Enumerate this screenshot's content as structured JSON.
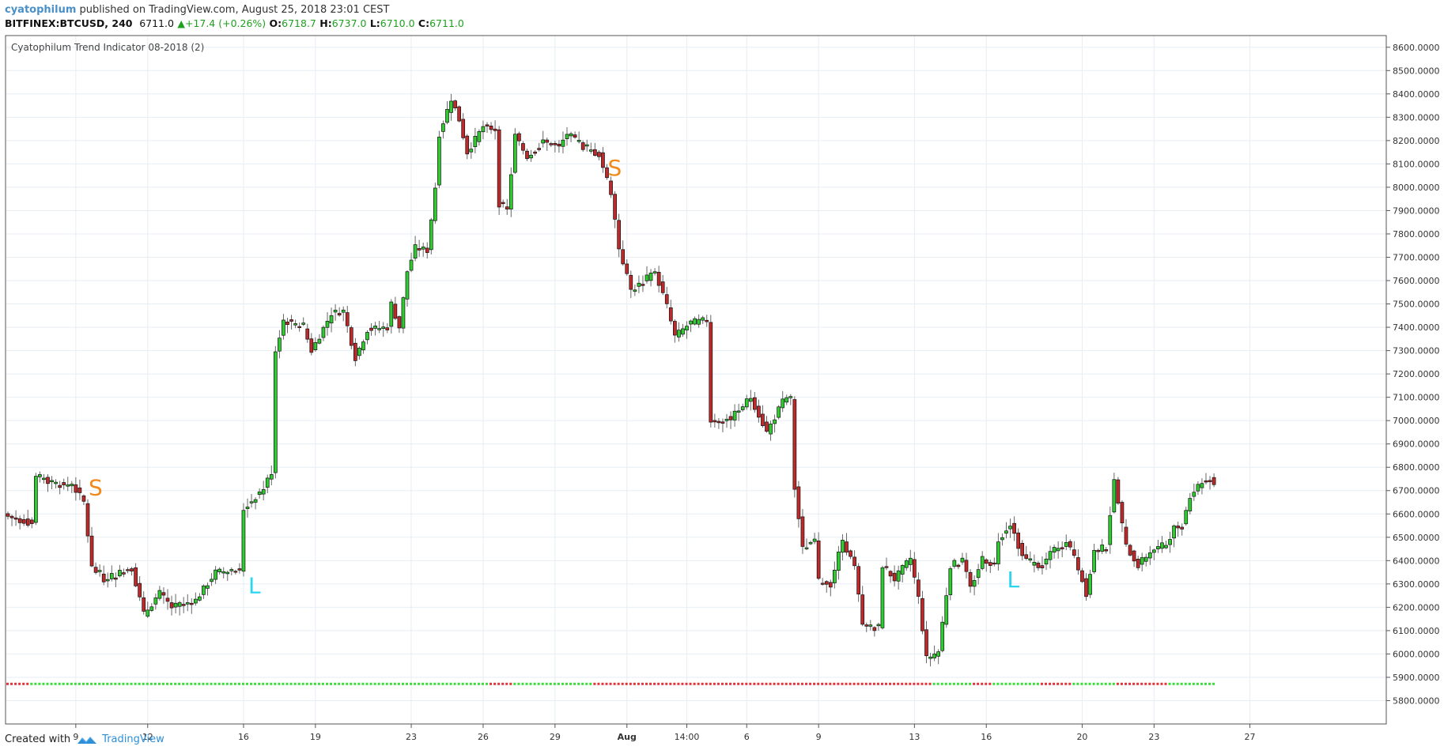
{
  "header": {
    "author": "cyatophilum",
    "published_text": " published on TradingView.com, August 25, 2018 23:01 CEST",
    "symbol": "BITFINEX:BTCUSD, 240",
    "last": "6711.0",
    "change": "+17.4 (+0.26%)",
    "open_label": "O:",
    "open": "6718.7",
    "high_label": "H:",
    "high": "6737.0",
    "low_label": "L:",
    "low": "6710.0",
    "close_label": "C:",
    "close": "6711.0"
  },
  "footer": {
    "created_with": "Created with",
    "brand": "TradingView"
  },
  "colors": {
    "up": "#2ecc2e",
    "down": "#c0282a",
    "outline": "#111111",
    "grid": "#e6eef4",
    "long_signal": "#29d6f0",
    "short_signal": "#f08a1c"
  },
  "chart_data": {
    "type": "candlestick",
    "indicator_title": "Cyatophilum Trend Indicator 08-2018 (2)",
    "ylim": [
      5700,
      8650
    ],
    "y_ticks": [
      "8600.0000",
      "8500.0000",
      "8400.0000",
      "8300.0000",
      "8200.0000",
      "8100.0000",
      "8000.0000",
      "7900.0000",
      "7800.0000",
      "7700.0000",
      "7600.0000",
      "7500.0000",
      "7400.0000",
      "7300.0000",
      "7200.0000",
      "7100.0000",
      "7000.0000",
      "6900.0000",
      "6800.0000",
      "6700.0000",
      "6600.0000",
      "6500.0000",
      "6400.0000",
      "6300.0000",
      "6200.0000",
      "6100.0000",
      "6000.0000",
      "5900.0000",
      "5800.0000"
    ],
    "x_ticks": [
      {
        "label": "9",
        "bar": 17
      },
      {
        "label": "12",
        "bar": 35
      },
      {
        "label": "16",
        "bar": 59
      },
      {
        "label": "19",
        "bar": 77
      },
      {
        "label": "23",
        "bar": 101
      },
      {
        "label": "26",
        "bar": 119
      },
      {
        "label": "29",
        "bar": 137
      },
      {
        "label": "Aug",
        "bar": 155,
        "bold": true
      },
      {
        "label": "14:00",
        "bar": 170
      },
      {
        "label": "6",
        "bar": 185
      },
      {
        "label": "9",
        "bar": 203
      },
      {
        "label": "13",
        "bar": 227
      },
      {
        "label": "16",
        "bar": 245
      },
      {
        "label": "20",
        "bar": 269
      },
      {
        "label": "23",
        "bar": 287
      },
      {
        "label": "27",
        "bar": 311
      }
    ],
    "anchors": [
      {
        "bar": 0,
        "p": 6590
      },
      {
        "bar": 6,
        "p": 6560
      },
      {
        "bar": 7,
        "p": 6760
      },
      {
        "bar": 14,
        "p": 6720
      },
      {
        "bar": 16,
        "p": 6730
      },
      {
        "bar": 19,
        "p": 6650
      },
      {
        "bar": 21,
        "p": 6370
      },
      {
        "bar": 24,
        "p": 6320
      },
      {
        "bar": 31,
        "p": 6370
      },
      {
        "bar": 34,
        "p": 6170
      },
      {
        "bar": 38,
        "p": 6260
      },
      {
        "bar": 41,
        "p": 6200
      },
      {
        "bar": 47,
        "p": 6230
      },
      {
        "bar": 52,
        "p": 6350
      },
      {
        "bar": 58,
        "p": 6360
      },
      {
        "bar": 59,
        "p": 6620
      },
      {
        "bar": 64,
        "p": 6710
      },
      {
        "bar": 66,
        "p": 6780
      },
      {
        "bar": 67,
        "p": 7300
      },
      {
        "bar": 69,
        "p": 7430
      },
      {
        "bar": 74,
        "p": 7400
      },
      {
        "bar": 76,
        "p": 7300
      },
      {
        "bar": 81,
        "p": 7460
      },
      {
        "bar": 84,
        "p": 7470
      },
      {
        "bar": 87,
        "p": 7270
      },
      {
        "bar": 90,
        "p": 7390
      },
      {
        "bar": 95,
        "p": 7400
      },
      {
        "bar": 96,
        "p": 7500
      },
      {
        "bar": 98,
        "p": 7400
      },
      {
        "bar": 100,
        "p": 7640
      },
      {
        "bar": 102,
        "p": 7740
      },
      {
        "bar": 105,
        "p": 7730
      },
      {
        "bar": 107,
        "p": 8000
      },
      {
        "bar": 108,
        "p": 8230
      },
      {
        "bar": 111,
        "p": 8380
      },
      {
        "bar": 113,
        "p": 8290
      },
      {
        "bar": 115,
        "p": 8150
      },
      {
        "bar": 119,
        "p": 8260
      },
      {
        "bar": 122,
        "p": 8250
      },
      {
        "bar": 123,
        "p": 7930
      },
      {
        "bar": 125,
        "p": 7900
      },
      {
        "bar": 127,
        "p": 8220
      },
      {
        "bar": 130,
        "p": 8130
      },
      {
        "bar": 134,
        "p": 8200
      },
      {
        "bar": 138,
        "p": 8170
      },
      {
        "bar": 140,
        "p": 8230
      },
      {
        "bar": 144,
        "p": 8170
      },
      {
        "bar": 148,
        "p": 8140
      },
      {
        "bar": 151,
        "p": 7980
      },
      {
        "bar": 153,
        "p": 7740
      },
      {
        "bar": 156,
        "p": 7560
      },
      {
        "bar": 158,
        "p": 7580
      },
      {
        "bar": 162,
        "p": 7640
      },
      {
        "bar": 165,
        "p": 7490
      },
      {
        "bar": 167,
        "p": 7360
      },
      {
        "bar": 171,
        "p": 7420
      },
      {
        "bar": 175,
        "p": 7430
      },
      {
        "bar": 176,
        "p": 7000
      },
      {
        "bar": 181,
        "p": 7010
      },
      {
        "bar": 186,
        "p": 7100
      },
      {
        "bar": 190,
        "p": 6950
      },
      {
        "bar": 194,
        "p": 7080
      },
      {
        "bar": 196,
        "p": 7100
      },
      {
        "bar": 197,
        "p": 6710
      },
      {
        "bar": 199,
        "p": 6450
      },
      {
        "bar": 202,
        "p": 6490
      },
      {
        "bar": 203,
        "p": 6310
      },
      {
        "bar": 206,
        "p": 6300
      },
      {
        "bar": 209,
        "p": 6490
      },
      {
        "bar": 212,
        "p": 6370
      },
      {
        "bar": 214,
        "p": 6120
      },
      {
        "bar": 218,
        "p": 6110
      },
      {
        "bar": 219,
        "p": 6380
      },
      {
        "bar": 222,
        "p": 6320
      },
      {
        "bar": 226,
        "p": 6410
      },
      {
        "bar": 228,
        "p": 6240
      },
      {
        "bar": 230,
        "p": 5980
      },
      {
        "bar": 233,
        "p": 6010
      },
      {
        "bar": 236,
        "p": 6380
      },
      {
        "bar": 239,
        "p": 6400
      },
      {
        "bar": 241,
        "p": 6280
      },
      {
        "bar": 244,
        "p": 6410
      },
      {
        "bar": 247,
        "p": 6380
      },
      {
        "bar": 248,
        "p": 6490
      },
      {
        "bar": 251,
        "p": 6560
      },
      {
        "bar": 254,
        "p": 6420
      },
      {
        "bar": 256,
        "p": 6390
      },
      {
        "bar": 259,
        "p": 6380
      },
      {
        "bar": 262,
        "p": 6450
      },
      {
        "bar": 265,
        "p": 6480
      },
      {
        "bar": 267,
        "p": 6420
      },
      {
        "bar": 270,
        "p": 6260
      },
      {
        "bar": 272,
        "p": 6440
      },
      {
        "bar": 275,
        "p": 6460
      },
      {
        "bar": 277,
        "p": 6740
      },
      {
        "bar": 280,
        "p": 6460
      },
      {
        "bar": 283,
        "p": 6380
      },
      {
        "bar": 286,
        "p": 6440
      },
      {
        "bar": 290,
        "p": 6470
      },
      {
        "bar": 292,
        "p": 6540
      },
      {
        "bar": 294,
        "p": 6550
      },
      {
        "bar": 296,
        "p": 6680
      },
      {
        "bar": 299,
        "p": 6740
      },
      {
        "bar": 301,
        "p": 6750
      },
      {
        "bar": 302,
        "p": 6711
      }
    ],
    "signals": [
      {
        "label": "S",
        "bar": 19,
        "price": 6715,
        "kind": "short"
      },
      {
        "label": "L",
        "bar": 59,
        "price": 6295,
        "kind": "long"
      },
      {
        "label": "S",
        "bar": 149,
        "price": 8085,
        "kind": "short"
      },
      {
        "label": "L",
        "bar": 249,
        "price": 6320,
        "kind": "long"
      }
    ],
    "trend_line": {
      "price": 5870,
      "segments": [
        {
          "from": 0,
          "to": 5,
          "trend": "down"
        },
        {
          "from": 6,
          "to": 88,
          "trend": "up"
        },
        {
          "from": 89,
          "to": 120,
          "trend": "up"
        },
        {
          "from": 121,
          "to": 126,
          "trend": "down"
        },
        {
          "from": 127,
          "to": 146,
          "trend": "up"
        },
        {
          "from": 147,
          "to": 231,
          "trend": "down"
        },
        {
          "from": 232,
          "to": 241,
          "trend": "up"
        },
        {
          "from": 242,
          "to": 246,
          "trend": "down"
        },
        {
          "from": 247,
          "to": 258,
          "trend": "up"
        },
        {
          "from": 259,
          "to": 266,
          "trend": "down"
        },
        {
          "from": 267,
          "to": 277,
          "trend": "up"
        },
        {
          "from": 278,
          "to": 290,
          "trend": "down"
        },
        {
          "from": 291,
          "to": 302,
          "trend": "up"
        }
      ]
    }
  }
}
